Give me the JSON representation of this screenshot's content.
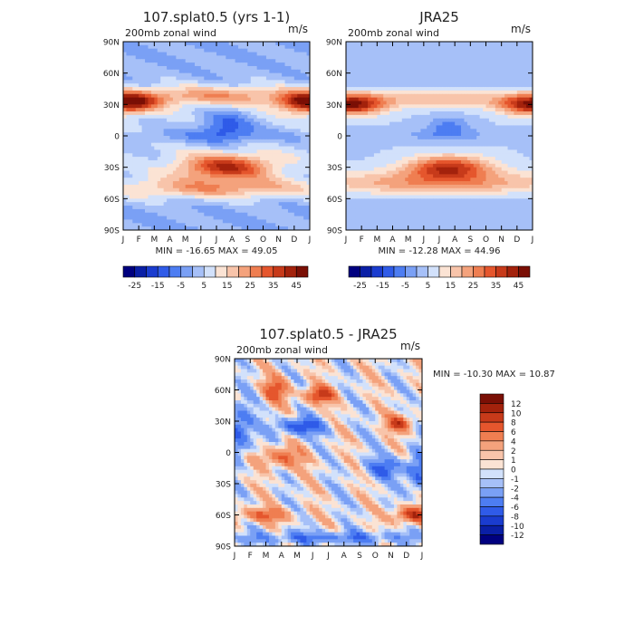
{
  "chart_data": [
    {
      "type": "heatmap",
      "panel_title": "107.splat0.5 (yrs 1-1)",
      "left_label": "200mb  zonal  wind",
      "units": "m/s",
      "stats": "MIN = -16.65  MAX =  49.05",
      "x_tick_labels": [
        "J",
        "F",
        "M",
        "A",
        "M",
        "J",
        "J",
        "A",
        "S",
        "O",
        "N",
        "D",
        "J"
      ],
      "y_tick_labels": [
        "90N",
        "60N",
        "30N",
        "0",
        "30S",
        "60S",
        "90S"
      ],
      "ylim": [
        -90,
        90
      ],
      "colorbar_labels": [
        "-25",
        "-15",
        "-5",
        "5",
        "15",
        "25",
        "35",
        "45"
      ],
      "colorbar_orientation": "horizontal",
      "field": "climatological_zonal_wind_model"
    },
    {
      "type": "heatmap",
      "panel_title": "JRA25",
      "left_label": "200mb  zonal  wind",
      "units": "m/s",
      "stats": "MIN = -12.28  MAX =  44.96",
      "x_tick_labels": [
        "J",
        "F",
        "M",
        "A",
        "M",
        "J",
        "J",
        "A",
        "S",
        "O",
        "N",
        "D",
        "J"
      ],
      "y_tick_labels": [
        "90N",
        "60N",
        "30N",
        "0",
        "30S",
        "60S",
        "90S"
      ],
      "ylim": [
        -90,
        90
      ],
      "colorbar_labels": [
        "-25",
        "-15",
        "-5",
        "5",
        "15",
        "25",
        "35",
        "45"
      ],
      "colorbar_orientation": "horizontal",
      "field": "climatological_zonal_wind_reanalysis"
    },
    {
      "type": "heatmap",
      "panel_title": "107.splat0.5 - JRA25",
      "left_label": "200mb  zonal  wind",
      "units": "m/s",
      "stats": "MIN = -10.30  MAX =  10.87",
      "x_tick_labels": [
        "J",
        "F",
        "M",
        "A",
        "M",
        "J",
        "J",
        "A",
        "S",
        "O",
        "N",
        "D",
        "J"
      ],
      "y_tick_labels": [
        "90N",
        "60N",
        "30N",
        "0",
        "30S",
        "60S",
        "90S"
      ],
      "ylim": [
        -90,
        90
      ],
      "colorbar_labels": [
        "12",
        "10",
        "8",
        "6",
        "4",
        "2",
        "1",
        "0",
        "-1",
        "-2",
        "-4",
        "-6",
        "-8",
        "-10",
        "-12"
      ],
      "colorbar_orientation": "vertical",
      "field": "difference"
    }
  ],
  "palettes": {
    "full": [
      "#00007f",
      "#0a1fa6",
      "#1a3ccf",
      "#2f5be8",
      "#4d7df2",
      "#7aa0f5",
      "#a6c0f8",
      "#d2e1fb",
      "#fbe3d4",
      "#f8c4aa",
      "#f4a27c",
      "#ef7e51",
      "#e5562d",
      "#c73a1a",
      "#a3220c",
      "#7a0f05"
    ],
    "diff": [
      "#00007f",
      "#0a1fa6",
      "#1a3ccf",
      "#2f5be8",
      "#4d7df2",
      "#7aa0f5",
      "#a6c0f8",
      "#d2e1fb",
      "#fbe3d4",
      "#f8c4aa",
      "#f4a27c",
      "#ef7e51",
      "#e5562d",
      "#c73a1a",
      "#a3220c",
      "#7a0f05"
    ]
  }
}
